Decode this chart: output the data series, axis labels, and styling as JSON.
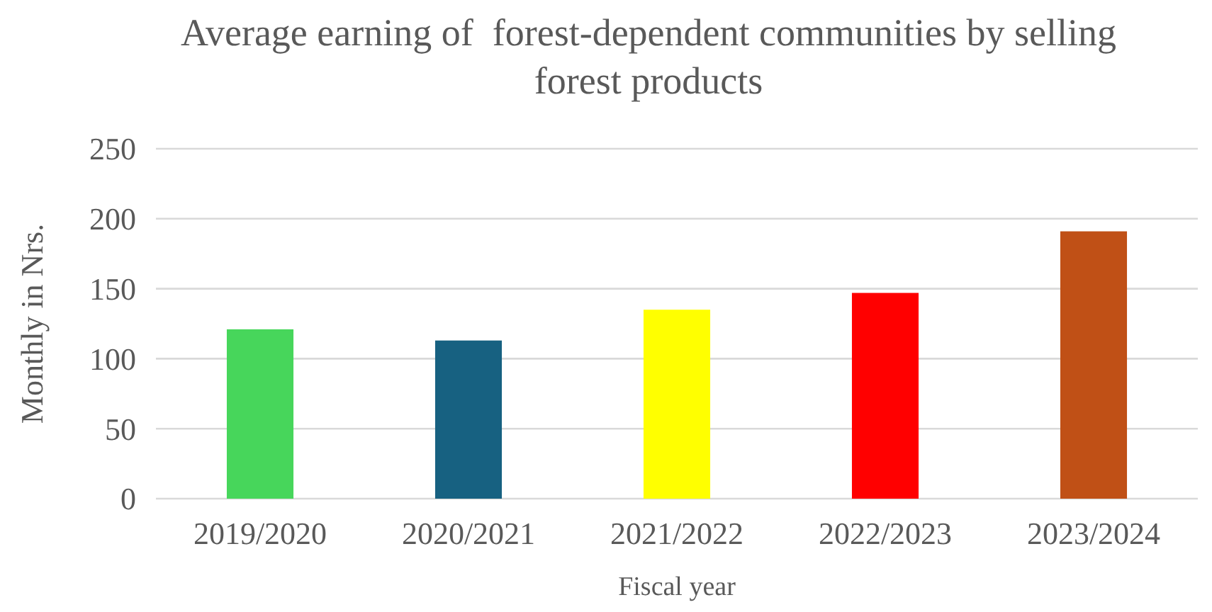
{
  "chart_data": {
    "type": "bar",
    "title": "Average earning of  forest-dependent communities by selling forest products",
    "xlabel": "Fiscal year",
    "ylabel": "Monthly in Nrs.",
    "categories": [
      "2019/2020",
      "2020/2021",
      "2021/2022",
      "2022/2023",
      "2023/2024"
    ],
    "values": [
      121,
      113,
      135,
      147,
      191
    ],
    "colors": [
      "#47d65b",
      "#176181",
      "#ffff00",
      "#ff0000",
      "#c05016"
    ],
    "ylim": [
      0,
      250
    ],
    "yticks": [
      0,
      50,
      100,
      150,
      200,
      250
    ],
    "grid": "y"
  }
}
